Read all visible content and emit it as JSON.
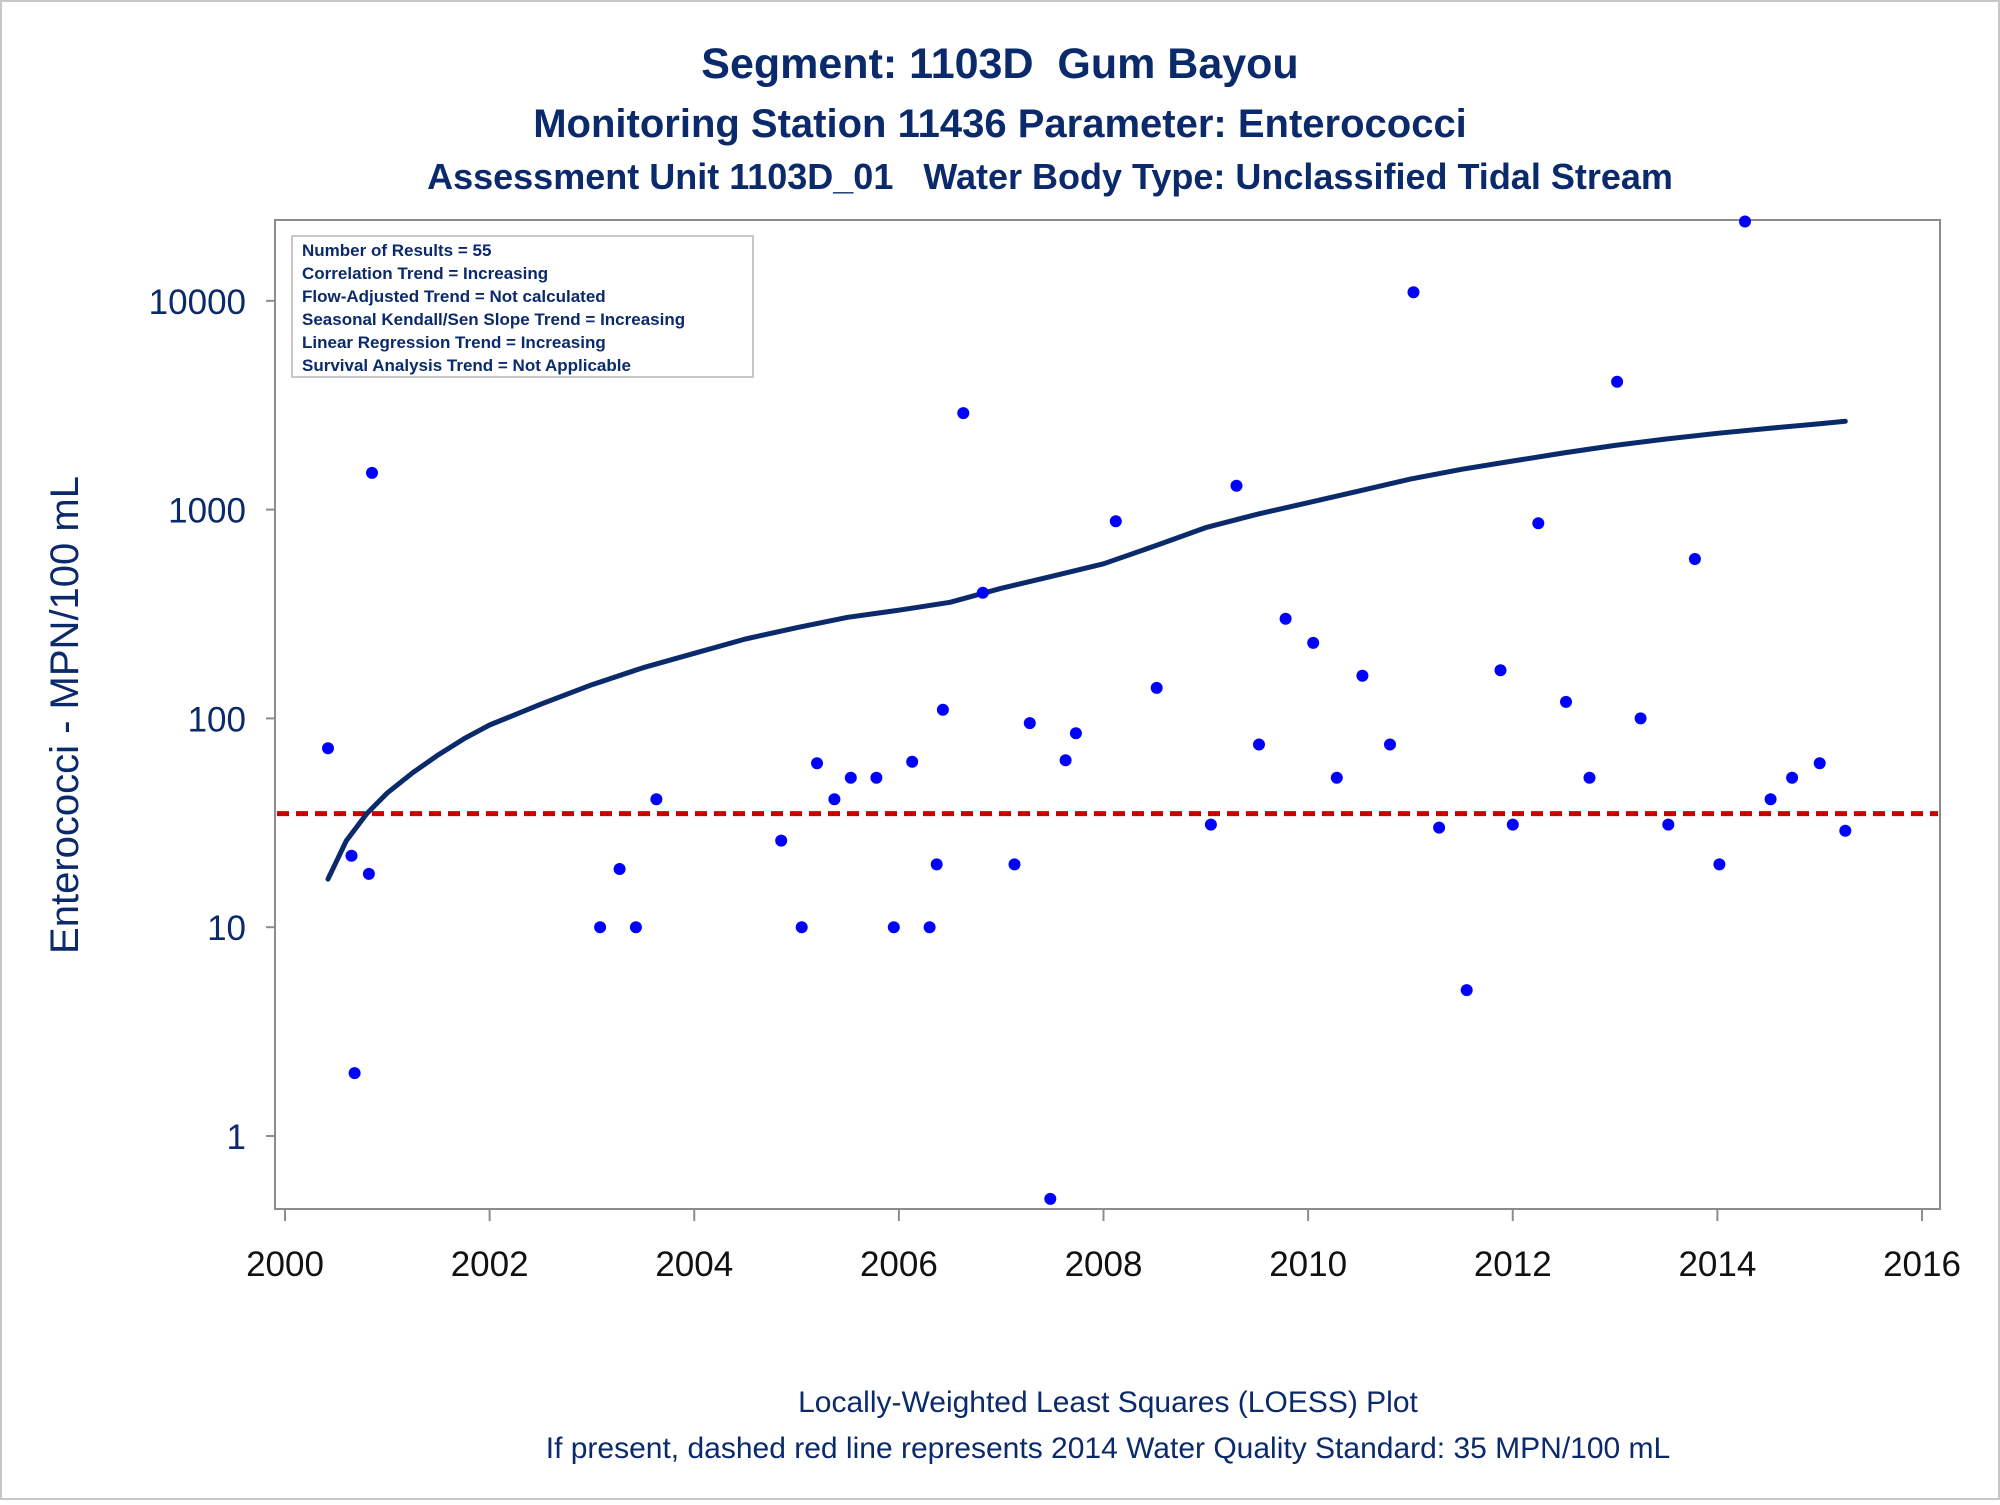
{
  "chart_data": {
    "type": "scatter",
    "title": "Segment: 1103D  Gum Bayou",
    "subtitle": "Monitoring Station 11436 Parameter: Enterococci",
    "subtitle2": "Assessment Unit 1103D_01   Water Body Type: Unclassified Tidal Stream",
    "ylabel": "Enterococci - MPN/100 mL",
    "xlabel": "",
    "footer": [
      "Locally-Weighted Least Squares (LOESS) Plot",
      "If present, dashed red line represents 2014 Water Quality Standard: 35 MPN/100 mL"
    ],
    "legend_lines": [
      "Number of Results = 55",
      "Correlation Trend = Increasing",
      "Flow-Adjusted Trend = Not calculated",
      "Seasonal Kendall/Sen Slope Trend = Increasing",
      "Linear Regression Trend = Increasing",
      "Survival Analysis Trend = Not Applicable"
    ],
    "legend_placement": "top-left",
    "x_scale": "linear",
    "y_scale": "log",
    "xlim": [
      2000,
      2016
    ],
    "ylim": [
      0.45,
      25000
    ],
    "x_ticks": [
      2000,
      2002,
      2004,
      2006,
      2008,
      2010,
      2012,
      2014,
      2016
    ],
    "y_ticks": [
      1,
      10,
      100,
      1000,
      10000
    ],
    "grid": false,
    "standard": {
      "value": 35,
      "color": "#cc0000",
      "style": "dashed"
    },
    "colors": {
      "points": "#0000ff",
      "loess": "#0b2a6b",
      "text": "#0b2a6b",
      "axis": "#8c8c8c"
    },
    "series": [
      {
        "kind": "points",
        "x": [
          2000.42,
          2000.65,
          2000.68,
          2000.82,
          2000.85,
          2003.08,
          2003.27,
          2003.43,
          2003.63,
          2004.85,
          2005.05,
          2005.2,
          2005.37,
          2005.53,
          2005.78,
          2005.95,
          2006.13,
          2006.3,
          2006.37,
          2006.43,
          2006.63,
          2006.82,
          2007.13,
          2007.28,
          2007.48,
          2007.63,
          2007.73,
          2008.12,
          2008.52,
          2009.05,
          2009.3,
          2009.52,
          2009.78,
          2010.05,
          2010.28,
          2010.53,
          2010.8,
          2011.03,
          2011.28,
          2011.55,
          2011.88,
          2012.0,
          2012.25,
          2012.52,
          2012.75,
          2013.02,
          2013.25,
          2013.52,
          2013.78,
          2014.02,
          2014.27,
          2014.52,
          2014.73,
          2015.0,
          2015.25
        ],
        "y": [
          72,
          22,
          2,
          18,
          1500,
          10,
          19,
          10,
          41,
          26,
          10,
          61,
          41,
          52,
          52,
          10,
          62,
          10,
          20,
          110,
          2900,
          400,
          20,
          95,
          0.5,
          63,
          85,
          880,
          140,
          31,
          1300,
          75,
          300,
          230,
          52,
          160,
          75,
          11000,
          30,
          5,
          170,
          31,
          860,
          120,
          52,
          4100,
          100,
          31,
          580,
          20,
          24000,
          41,
          52,
          61,
          29
        ]
      },
      {
        "kind": "loess",
        "x": [
          2000.42,
          2000.6,
          2000.8,
          2001.0,
          2001.25,
          2001.5,
          2001.75,
          2002.0,
          2002.5,
          2003.0,
          2003.5,
          2004.0,
          2004.5,
          2005.0,
          2005.5,
          2006.0,
          2006.5,
          2007.0,
          2007.5,
          2008.0,
          2008.5,
          2009.0,
          2009.5,
          2010.0,
          2010.5,
          2011.0,
          2011.5,
          2012.0,
          2012.5,
          2013.0,
          2013.5,
          2014.0,
          2014.5,
          2015.0,
          2015.25
        ],
        "y": [
          17,
          26,
          35,
          44,
          55,
          67,
          80,
          93,
          117,
          145,
          175,
          205,
          240,
          272,
          305,
          330,
          360,
          420,
          480,
          550,
          670,
          820,
          950,
          1080,
          1230,
          1400,
          1560,
          1710,
          1870,
          2030,
          2180,
          2320,
          2450,
          2580,
          2650
        ]
      }
    ]
  }
}
